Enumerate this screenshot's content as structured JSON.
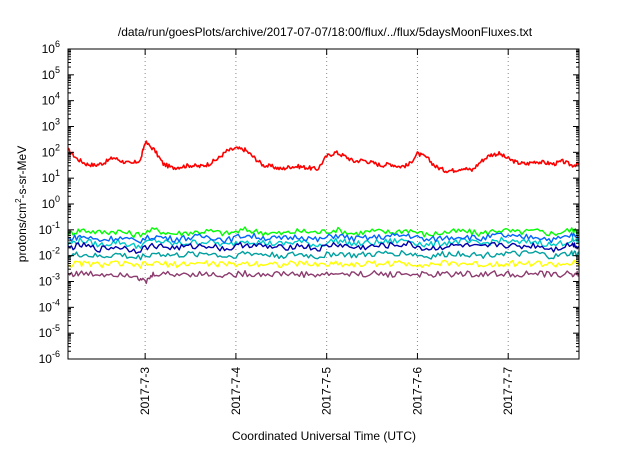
{
  "chart_data": {
    "type": "line",
    "title": "/data/run/goesPlots/archive/2017-07-07/18:00/flux/../flux/5daysMoonFluxes.txt",
    "xlabel": "Coordinated Universal Time (UTC)",
    "ylabel": {
      "prefix": "protons/cm",
      "superscript": "2",
      "suffix": "-s-sr-MeV"
    },
    "yscale": "log",
    "ylim": [
      -6,
      6
    ],
    "y_ticks": [
      {
        "base": "10",
        "exp": "6"
      },
      {
        "base": "10",
        "exp": "5"
      },
      {
        "base": "10",
        "exp": "4"
      },
      {
        "base": "10",
        "exp": "3"
      },
      {
        "base": "10",
        "exp": "2"
      },
      {
        "base": "10",
        "exp": "1"
      },
      {
        "base": "10",
        "exp": "0"
      },
      {
        "base": "10",
        "exp": "-1"
      },
      {
        "base": "10",
        "exp": "-2"
      },
      {
        "base": "10",
        "exp": "-3"
      },
      {
        "base": "10",
        "exp": "-4"
      },
      {
        "base": "10",
        "exp": "-5"
      },
      {
        "base": "10",
        "exp": "-6"
      }
    ],
    "xlim": [
      2.15,
      7.78
    ],
    "x_ticks": [
      {
        "x": 3,
        "label": "2017-7-3"
      },
      {
        "x": 4,
        "label": "2017-7-4"
      },
      {
        "x": 5,
        "label": "2017-7-5"
      },
      {
        "x": 6,
        "label": "2017-7-6"
      },
      {
        "x": 7,
        "label": "2017-7-7"
      }
    ],
    "grid": {
      "vertical": true,
      "horizontal": false,
      "style": "dotted"
    },
    "series": [
      {
        "color": "#ff0000",
        "x": [
          2.15,
          2.25,
          2.35,
          2.45,
          2.55,
          2.65,
          2.75,
          2.85,
          2.95,
          3.0,
          3.1,
          3.2,
          3.3,
          3.4,
          3.5,
          3.6,
          3.7,
          3.8,
          3.9,
          4.0,
          4.1,
          4.2,
          4.3,
          4.4,
          4.5,
          4.6,
          4.7,
          4.8,
          4.9,
          5.0,
          5.1,
          5.2,
          5.3,
          5.4,
          5.5,
          5.6,
          5.7,
          5.8,
          5.9,
          6.0,
          6.1,
          6.2,
          6.3,
          6.4,
          6.5,
          6.6,
          6.7,
          6.8,
          6.9,
          7.0,
          7.1,
          7.2,
          7.3,
          7.4,
          7.5,
          7.6,
          7.7,
          7.78
        ],
        "log10_y": [
          2.1,
          1.75,
          1.55,
          1.5,
          1.6,
          1.8,
          1.65,
          1.55,
          1.7,
          2.4,
          2.1,
          1.55,
          1.4,
          1.45,
          1.5,
          1.45,
          1.55,
          1.75,
          2.05,
          2.15,
          2.1,
          1.8,
          1.5,
          1.45,
          1.35,
          1.45,
          1.45,
          1.4,
          1.35,
          1.85,
          2.0,
          1.85,
          1.65,
          1.7,
          1.6,
          1.5,
          1.55,
          1.45,
          1.5,
          1.95,
          1.8,
          1.45,
          1.3,
          1.3,
          1.4,
          1.3,
          1.65,
          1.9,
          1.95,
          1.75,
          1.6,
          1.55,
          1.65,
          1.6,
          1.55,
          1.65,
          1.5,
          1.55
        ]
      },
      {
        "color": "#00ff00",
        "x": [
          2.15,
          2.3,
          2.5,
          2.7,
          2.9,
          3.1,
          3.3,
          3.5,
          3.7,
          3.9,
          4.1,
          4.3,
          4.5,
          4.7,
          4.9,
          5.1,
          5.3,
          5.5,
          5.7,
          5.9,
          6.1,
          6.3,
          6.5,
          6.7,
          6.9,
          7.1,
          7.3,
          7.5,
          7.7,
          7.78
        ],
        "log10_y": [
          -1.15,
          -1.0,
          -1.1,
          -1.05,
          -1.2,
          -1.0,
          -1.15,
          -1.1,
          -1.05,
          -1.15,
          -1.0,
          -1.1,
          -1.15,
          -1.05,
          -1.1,
          -1.0,
          -1.15,
          -1.05,
          -1.1,
          -1.0,
          -1.2,
          -1.1,
          -1.05,
          -1.15,
          -1.0,
          -1.1,
          -1.05,
          -1.15,
          -1.0,
          -1.1
        ]
      },
      {
        "color": "#00c8c8",
        "x": [
          2.15,
          2.3,
          2.5,
          2.7,
          2.9,
          3.1,
          3.3,
          3.5,
          3.7,
          3.9,
          4.1,
          4.3,
          4.5,
          4.7,
          4.9,
          5.1,
          5.3,
          5.5,
          5.7,
          5.9,
          6.1,
          6.3,
          6.5,
          6.7,
          6.9,
          7.1,
          7.3,
          7.5,
          7.7,
          7.78
        ],
        "log10_y": [
          -1.55,
          -1.4,
          -1.6,
          -1.45,
          -1.65,
          -1.4,
          -1.55,
          -1.5,
          -1.45,
          -1.6,
          -1.4,
          -1.5,
          -1.55,
          -1.45,
          -1.6,
          -1.4,
          -1.55,
          -1.5,
          -1.45,
          -1.4,
          -1.6,
          -1.5,
          -1.45,
          -1.55,
          -1.4,
          -1.5,
          -1.45,
          -1.6,
          -1.4,
          -1.5
        ]
      },
      {
        "color": "#0064ff",
        "x": [
          2.15,
          2.3,
          2.5,
          2.7,
          2.9,
          3.1,
          3.3,
          3.5,
          3.7,
          3.9,
          4.1,
          4.3,
          4.5,
          4.7,
          4.9,
          5.1,
          5.3,
          5.5,
          5.7,
          5.9,
          6.1,
          6.3,
          6.5,
          6.7,
          6.9,
          7.1,
          7.3,
          7.5,
          7.7,
          7.78
        ],
        "log10_y": [
          -1.35,
          -1.25,
          -1.4,
          -1.3,
          -1.45,
          -1.25,
          -1.35,
          -1.3,
          -1.25,
          -1.4,
          -1.2,
          -1.3,
          -1.35,
          -1.25,
          -1.4,
          -1.2,
          -1.35,
          -1.3,
          -1.25,
          -1.2,
          -1.4,
          -1.3,
          -1.25,
          -1.35,
          -1.2,
          -1.3,
          -1.25,
          -1.4,
          -1.2,
          -1.3
        ]
      },
      {
        "color": "#0000aa",
        "x": [
          2.15,
          2.3,
          2.5,
          2.7,
          2.9,
          3.1,
          3.3,
          3.5,
          3.7,
          3.9,
          4.1,
          4.3,
          4.5,
          4.7,
          4.9,
          5.1,
          5.3,
          5.5,
          5.7,
          5.9,
          6.1,
          6.3,
          6.5,
          6.7,
          6.9,
          7.1,
          7.3,
          7.5,
          7.7,
          7.78
        ],
        "log10_y": [
          -1.7,
          -1.6,
          -1.75,
          -1.65,
          -1.8,
          -1.6,
          -1.7,
          -1.65,
          -1.6,
          -1.75,
          -1.55,
          -1.65,
          -1.7,
          -1.6,
          -1.75,
          -1.55,
          -1.7,
          -1.65,
          -1.6,
          -1.55,
          -1.75,
          -1.65,
          -1.6,
          -1.7,
          -1.55,
          -1.65,
          -1.6,
          -1.75,
          -1.55,
          -1.65
        ]
      },
      {
        "color": "#00a0a0",
        "x": [
          2.15,
          2.3,
          2.5,
          2.7,
          2.9,
          3.1,
          3.3,
          3.5,
          3.7,
          3.9,
          4.1,
          4.3,
          4.5,
          4.7,
          4.9,
          5.1,
          5.3,
          5.5,
          5.7,
          5.9,
          6.1,
          6.3,
          6.5,
          6.7,
          6.9,
          7.1,
          7.3,
          7.5,
          7.7,
          7.78
        ],
        "log10_y": [
          -2.0,
          -1.95,
          -2.05,
          -1.95,
          -2.1,
          -1.9,
          -2.0,
          -1.95,
          -1.9,
          -2.05,
          -1.9,
          -1.95,
          -2.0,
          -1.95,
          -2.05,
          -1.9,
          -2.0,
          -1.95,
          -1.9,
          -1.9,
          -2.05,
          -1.95,
          -1.9,
          -2.0,
          -1.9,
          -1.95,
          -1.9,
          -2.05,
          -1.9,
          -1.95
        ]
      },
      {
        "color": "#ffff00",
        "x": [
          2.15,
          2.3,
          2.5,
          2.7,
          2.9,
          3.1,
          3.3,
          3.5,
          3.7,
          3.9,
          4.1,
          4.3,
          4.5,
          4.7,
          4.9,
          5.1,
          5.3,
          5.5,
          5.7,
          5.9,
          6.1,
          6.3,
          6.5,
          6.7,
          6.9,
          7.1,
          7.3,
          7.5,
          7.7,
          7.78
        ],
        "log10_y": [
          -2.35,
          -2.3,
          -2.35,
          -2.3,
          -2.4,
          -2.3,
          -2.35,
          -2.3,
          -2.3,
          -2.35,
          -2.3,
          -2.3,
          -2.35,
          -2.3,
          -2.35,
          -2.3,
          -2.35,
          -2.3,
          -2.3,
          -2.3,
          -2.35,
          -2.3,
          -2.3,
          -2.35,
          -2.3,
          -2.3,
          -2.3,
          -2.35,
          -2.3,
          -2.3
        ]
      },
      {
        "color": "#8c3c6e",
        "x": [
          2.15,
          2.3,
          2.5,
          2.7,
          2.9,
          3.0,
          3.1,
          3.3,
          3.5,
          3.7,
          3.9,
          4.1,
          4.3,
          4.5,
          4.7,
          4.9,
          5.1,
          5.3,
          5.5,
          5.7,
          5.9,
          6.1,
          6.3,
          6.5,
          6.7,
          6.9,
          7.1,
          7.3,
          7.5,
          7.7,
          7.78
        ],
        "log10_y": [
          -2.7,
          -2.7,
          -2.72,
          -2.7,
          -2.75,
          -3.05,
          -2.7,
          -2.72,
          -2.7,
          -2.72,
          -2.75,
          -2.7,
          -2.72,
          -2.7,
          -2.72,
          -2.75,
          -2.7,
          -2.72,
          -2.7,
          -2.72,
          -2.7,
          -2.75,
          -2.72,
          -2.7,
          -2.72,
          -2.7,
          -2.72,
          -2.7,
          -2.75,
          -2.7,
          -2.72
        ]
      }
    ]
  }
}
